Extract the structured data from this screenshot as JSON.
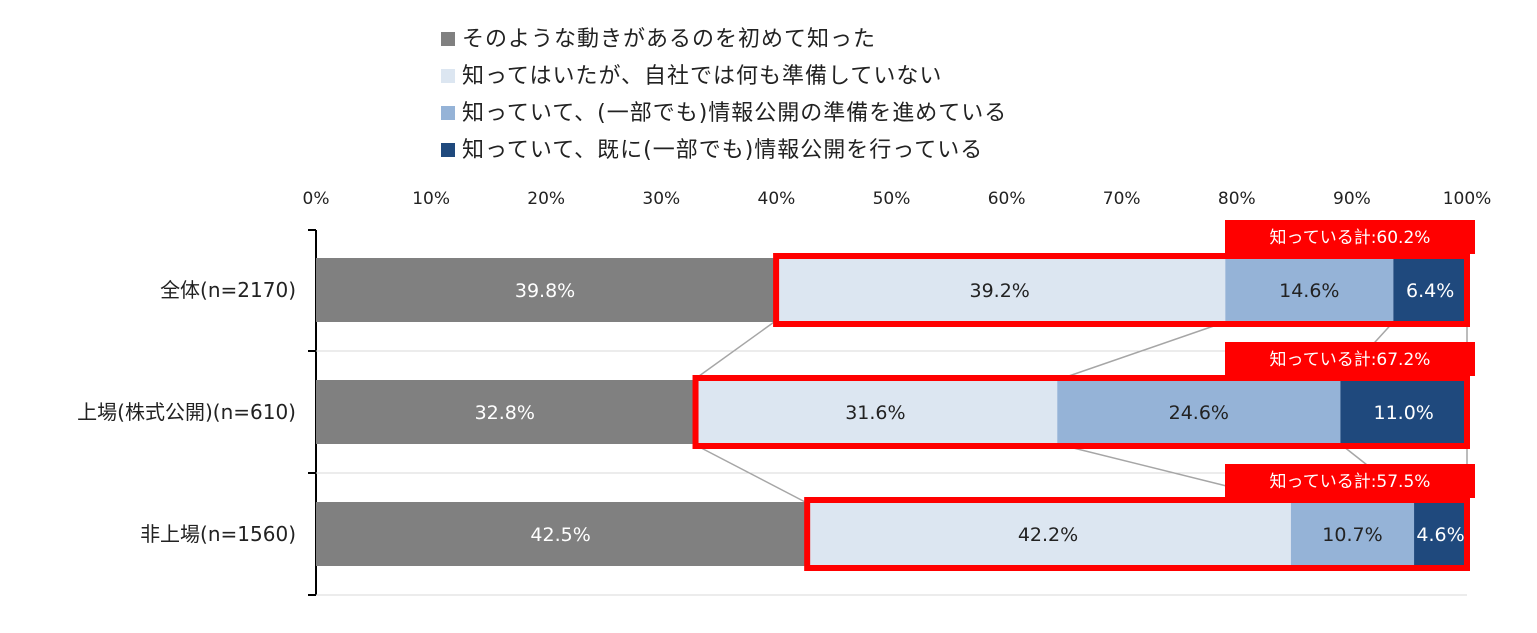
{
  "chart_data": {
    "type": "bar",
    "orientation": "horizontal",
    "stacked": "percent",
    "categories": [
      "全体(n=2170)",
      "上場(株式公開)(n=610)",
      "非上場(n=1560)"
    ],
    "series": [
      {
        "name": "そのような動きがあるのを初めて知った",
        "values": [
          39.8,
          32.8,
          42.5
        ],
        "color": "#808080",
        "label_color": "#ffffff"
      },
      {
        "name": "知ってはいたが、自社では何も準備していない",
        "values": [
          39.2,
          31.6,
          42.2
        ],
        "color": "#dce6f1",
        "label_color": "#222222"
      },
      {
        "name": "知っていて、(一部でも)情報公開の準備を進めている",
        "values": [
          14.6,
          24.6,
          10.7
        ],
        "color": "#95b3d7",
        "label_color": "#222222"
      },
      {
        "name": "知っていて、既に(一部でも)情報公開を行っている",
        "values": [
          6.4,
          11.0,
          4.6
        ],
        "color": "#1f497d",
        "label_color": "#ffffff"
      }
    ],
    "value_labels": [
      [
        "39.8%",
        "39.2%",
        "14.6%",
        "6.4%"
      ],
      [
        "32.8%",
        "31.6%",
        "24.6%",
        "11.0%"
      ],
      [
        "42.5%",
        "42.2%",
        "10.7%",
        "4.6%"
      ]
    ],
    "xlim": [
      0,
      100
    ],
    "x_ticks": [
      "0%",
      "10%",
      "20%",
      "30%",
      "40%",
      "50%",
      "60%",
      "70%",
      "80%",
      "90%",
      "100%"
    ],
    "legend_position": "top",
    "gridlines": false,
    "series_lines": true,
    "annotations": [
      {
        "text": "知っている計:60.2%",
        "category_index": 0
      },
      {
        "text": "知っている計:67.2%",
        "category_index": 1
      },
      {
        "text": "知っている計:57.5%",
        "category_index": 2
      }
    ],
    "highlight_color": "#ff0000"
  }
}
